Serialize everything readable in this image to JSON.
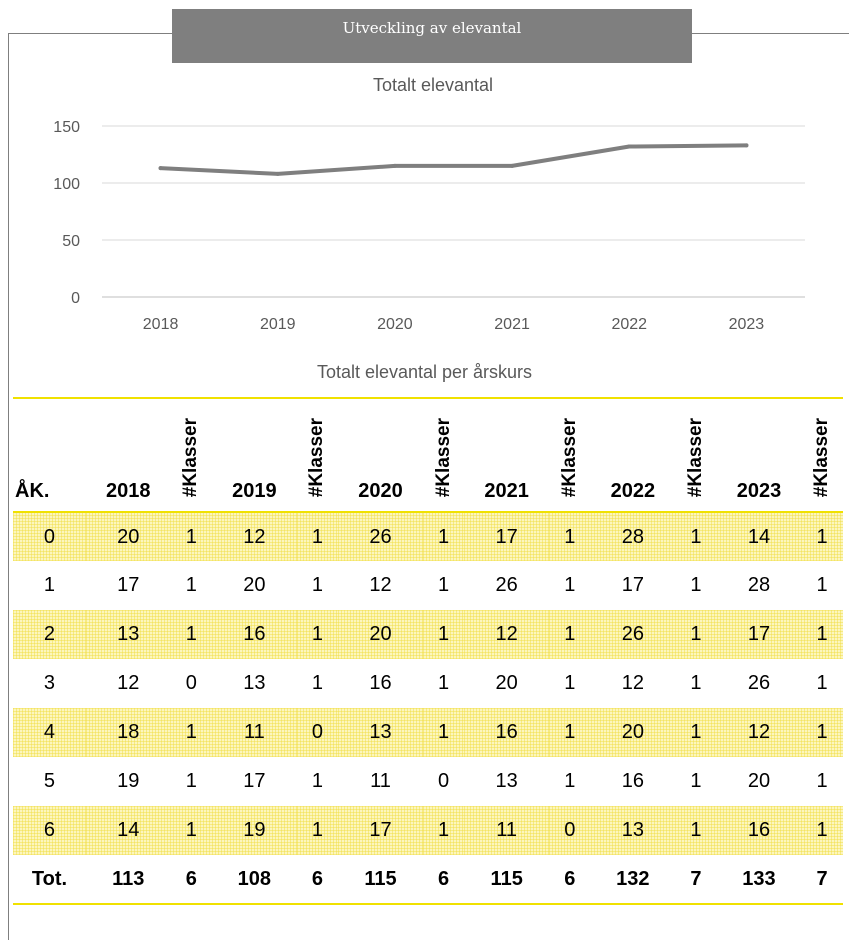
{
  "banner": {
    "title": "Utveckling av elevantal"
  },
  "chart_data": {
    "type": "line",
    "title": "Totalt elevantal",
    "categories": [
      "2018",
      "2019",
      "2020",
      "2021",
      "2022",
      "2023"
    ],
    "series": [
      {
        "values": [
          113,
          108,
          115,
          115,
          132,
          133
        ],
        "color": "#7f7f7f"
      }
    ],
    "ylim": [
      0,
      150
    ],
    "yticks": [
      0,
      50,
      100,
      150
    ],
    "grid": true,
    "xlabel": "",
    "ylabel": ""
  },
  "table": {
    "title": "Totalt elevantal per årskurs",
    "headers": [
      "ÅK.",
      "2018",
      "#Klasser",
      "2019",
      "#Klasser",
      "2020",
      "#Klasser",
      "2021",
      "#Klasser",
      "2022",
      "#Klasser",
      "2023",
      "#Klasser"
    ],
    "rows": [
      [
        "0",
        "20",
        "1",
        "12",
        "1",
        "26",
        "1",
        "17",
        "1",
        "28",
        "1",
        "14",
        "1"
      ],
      [
        "1",
        "17",
        "1",
        "20",
        "1",
        "12",
        "1",
        "26",
        "1",
        "17",
        "1",
        "28",
        "1"
      ],
      [
        "2",
        "13",
        "1",
        "16",
        "1",
        "20",
        "1",
        "12",
        "1",
        "26",
        "1",
        "17",
        "1"
      ],
      [
        "3",
        "12",
        "0",
        "13",
        "1",
        "16",
        "1",
        "20",
        "1",
        "12",
        "1",
        "26",
        "1"
      ],
      [
        "4",
        "18",
        "1",
        "11",
        "0",
        "13",
        "1",
        "16",
        "1",
        "20",
        "1",
        "12",
        "1"
      ],
      [
        "5",
        "19",
        "1",
        "17",
        "1",
        "11",
        "0",
        "13",
        "1",
        "16",
        "1",
        "20",
        "1"
      ],
      [
        "6",
        "14",
        "1",
        "19",
        "1",
        "17",
        "1",
        "11",
        "0",
        "13",
        "1",
        "16",
        "1"
      ]
    ],
    "total": [
      "Tot.",
      "113",
      "6",
      "108",
      "6",
      "115",
      "6",
      "115",
      "6",
      "132",
      "7",
      "133",
      "7"
    ]
  }
}
